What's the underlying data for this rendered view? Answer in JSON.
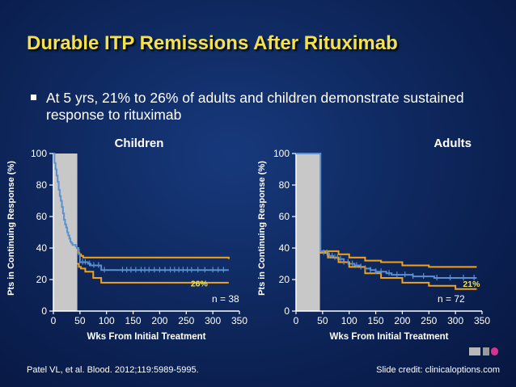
{
  "slide": {
    "title": "Durable ITP Remissions After Rituximab",
    "bullet": "At 5 yrs, 21% to 26% of adults and children demonstrate sustained response to rituximab",
    "citation": "Patel VL, et al. Blood. 2012;119:5989-5995.",
    "credit": "Slide credit: clinicaloptions.com"
  },
  "colors": {
    "title": "#f4e14e",
    "background": "#0d2559",
    "shade": "#c8c8c8",
    "ci_band": "#f0a21b",
    "km_curve": "#5a8fd0",
    "label_yellow": "#f4e14e"
  },
  "chart_data": [
    {
      "type": "line",
      "chart_title": "Children",
      "xlabel": "Wks From Initial Treatment",
      "ylabel": "Pts in Continuing Response (%)",
      "xlim": [
        0,
        350
      ],
      "ylim": [
        0,
        100
      ],
      "xticks": [
        0,
        50,
        100,
        150,
        200,
        250,
        300,
        350
      ],
      "yticks": [
        0,
        20,
        40,
        60,
        80,
        100
      ],
      "shaded_region": [
        0,
        45
      ],
      "n_label": "n = 38",
      "endpoint_label": "26%",
      "series": [
        {
          "role": "upper_ci",
          "x": [
            45,
            47,
            49,
            52,
            56,
            70,
            330
          ],
          "y": [
            40,
            37,
            36,
            35,
            34,
            34,
            33
          ]
        },
        {
          "role": "km_estimate",
          "x": [
            0,
            2,
            4,
            6,
            8,
            10,
            12,
            14,
            16,
            18,
            20,
            22,
            24,
            26,
            28,
            30,
            32,
            34,
            36,
            38,
            40,
            42,
            44,
            46,
            48,
            50,
            55,
            60,
            65,
            70,
            80,
            90,
            330
          ],
          "y": [
            100,
            94,
            90,
            86,
            82,
            77,
            73,
            70,
            66,
            62,
            58,
            55,
            53,
            50,
            48,
            46,
            44,
            43,
            42,
            42,
            42,
            41,
            40,
            39,
            36,
            31,
            31,
            31,
            30,
            29,
            29,
            26,
            26
          ]
        },
        {
          "role": "lower_ci",
          "x": [
            45,
            48,
            52,
            60,
            75,
            90,
            330
          ],
          "y": [
            30,
            28,
            27,
            25,
            21,
            18,
            18
          ]
        }
      ],
      "censor_x": [
        55,
        60,
        68,
        76,
        85,
        96,
        130,
        138,
        146,
        155,
        165,
        172,
        180,
        190,
        200,
        210,
        220,
        228,
        236,
        244,
        252,
        260,
        272,
        285,
        300,
        310,
        320
      ]
    },
    {
      "type": "line",
      "chart_title": "Adults",
      "xlabel": "Wks From Initial Treatment",
      "ylabel": "Pts in Continuing Response (%)",
      "xlim": [
        0,
        350
      ],
      "ylim": [
        0,
        100
      ],
      "xticks": [
        0,
        50,
        100,
        150,
        200,
        250,
        300,
        350
      ],
      "yticks": [
        0,
        20,
        40,
        60,
        80,
        100
      ],
      "shaded_region": [
        0,
        45
      ],
      "n_label": "n = 72",
      "endpoint_label": "21%",
      "series": [
        {
          "role": "upper_ci",
          "x": [
            45,
            60,
            80,
            100,
            130,
            160,
            200,
            250,
            300,
            340
          ],
          "y": [
            38,
            38,
            36,
            34,
            32,
            31,
            29,
            28,
            28,
            28
          ]
        },
        {
          "role": "km_estimate",
          "x": [
            0,
            45,
            46,
            50,
            60,
            70,
            80,
            90,
            100,
            110,
            120,
            130,
            140,
            150,
            160,
            170,
            180,
            200,
            220,
            240,
            260,
            300,
            340
          ],
          "y": [
            100,
            100,
            38,
            37,
            35,
            34,
            33,
            31,
            30,
            29,
            28,
            27,
            26,
            25,
            25,
            24,
            23,
            23,
            22,
            22,
            21,
            21,
            21
          ]
        },
        {
          "role": "lower_ci",
          "x": [
            45,
            60,
            80,
            100,
            130,
            160,
            200,
            250,
            300,
            340
          ],
          "y": [
            37,
            34,
            31,
            28,
            24,
            21,
            18,
            16,
            14,
            14
          ]
        }
      ],
      "censor_x": [
        52,
        58,
        63,
        68,
        73,
        78,
        84,
        90,
        98,
        106,
        114,
        122,
        130,
        140,
        150,
        160,
        175,
        190,
        205,
        220,
        240,
        265,
        290,
        315,
        335
      ]
    }
  ]
}
